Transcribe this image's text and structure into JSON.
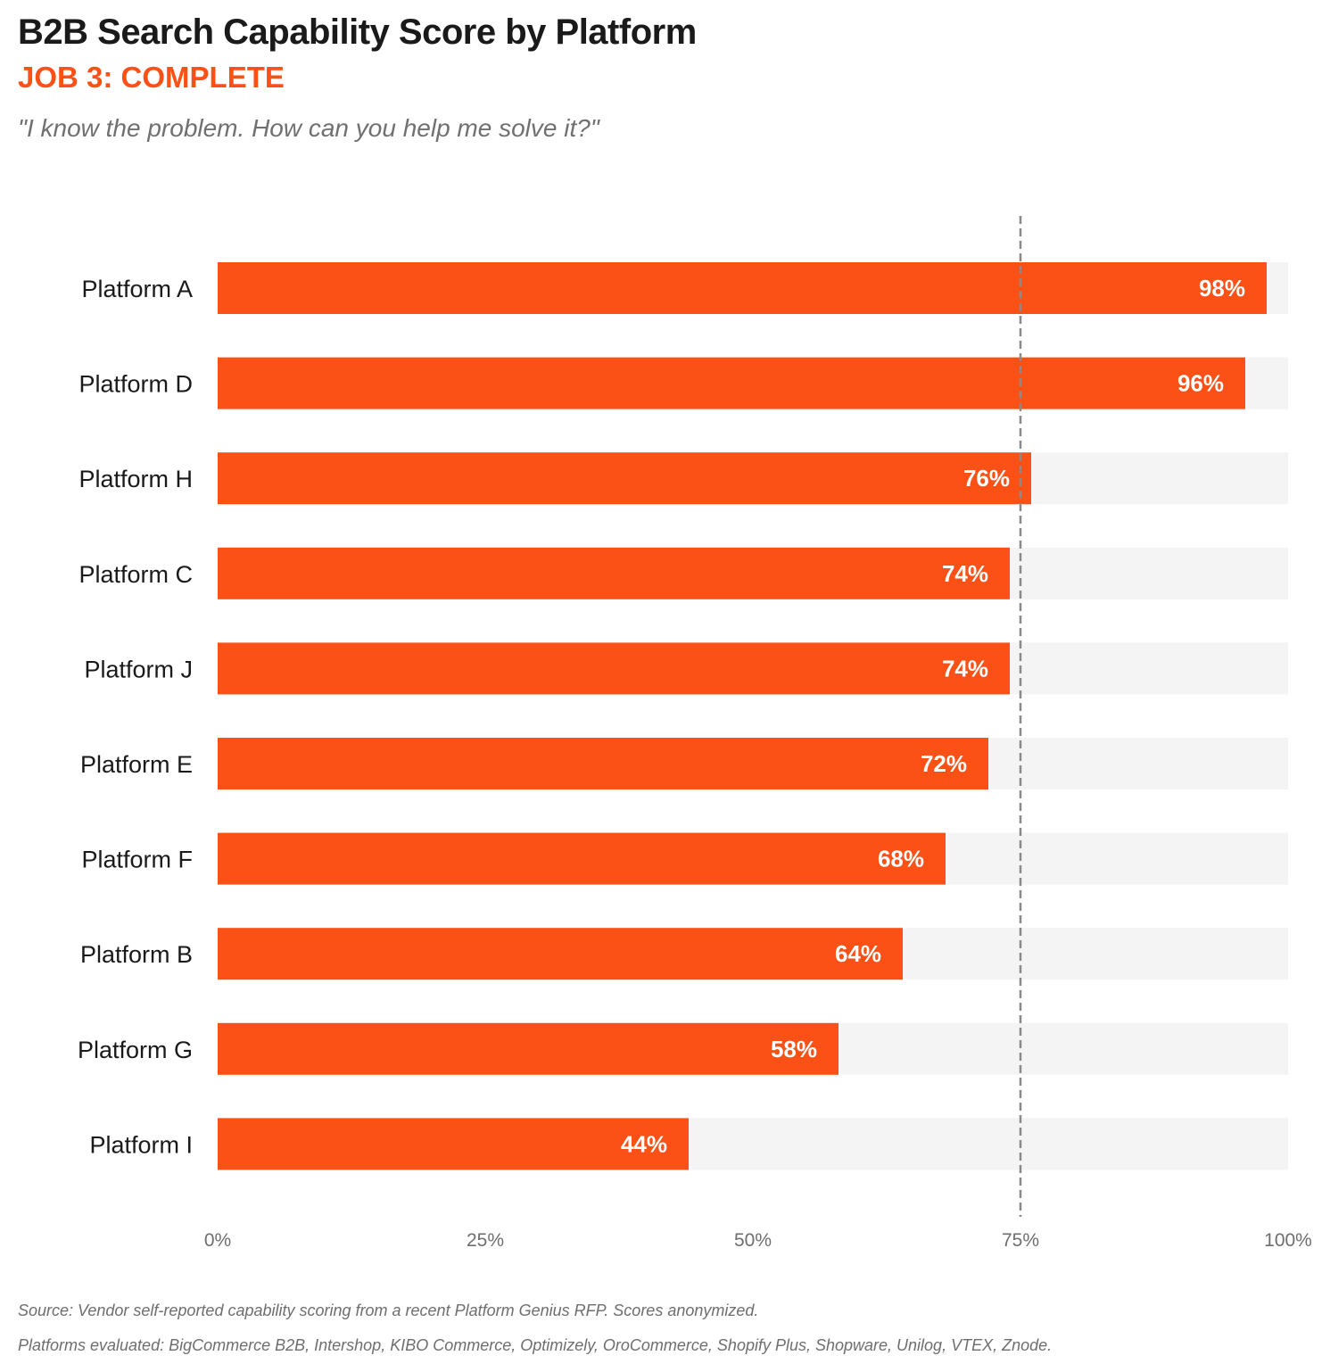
{
  "header": {
    "title": "B2B Search Capability Score by Platform",
    "subtitle": "JOB 3: COMPLETE",
    "quote": "\"I know the problem. How can you help me solve it?\""
  },
  "chart_data": {
    "type": "bar",
    "orientation": "horizontal",
    "categories": [
      "Platform A",
      "Platform D",
      "Platform H",
      "Platform C",
      "Platform J",
      "Platform E",
      "Platform F",
      "Platform B",
      "Platform G",
      "Platform I"
    ],
    "values": [
      98,
      96,
      76,
      74,
      74,
      72,
      68,
      64,
      58,
      44
    ],
    "value_labels": [
      "98%",
      "96%",
      "76%",
      "74%",
      "74%",
      "72%",
      "68%",
      "64%",
      "58%",
      "44%"
    ],
    "xlim": [
      0,
      100
    ],
    "x_ticks": [
      0,
      25,
      50,
      75,
      100
    ],
    "x_tick_labels": [
      "0%",
      "25%",
      "50%",
      "75%",
      "100%"
    ],
    "reference_line": 75,
    "background_track": true,
    "grid": false,
    "legend": "none",
    "bar_color": "#fc5116",
    "track_color": "#f4f4f4",
    "reference_line_color": "#8a8a8a"
  },
  "footer": {
    "source": "Source: Vendor self-reported capability scoring from a recent Platform Genius RFP. Scores anonymized.",
    "platforms": "Platforms evaluated: BigCommerce B2B, Intershop, KIBO Commerce, Optimizely, OroCommerce, Shopify Plus, Shopware, Unilog, VTEX, Znode."
  }
}
